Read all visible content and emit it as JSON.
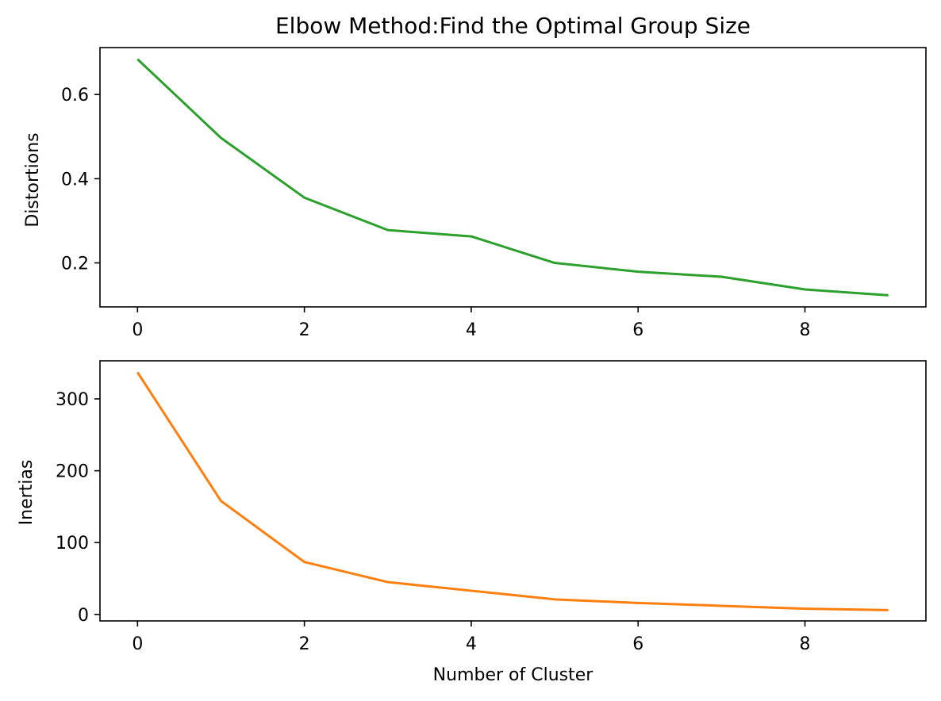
{
  "chart_data": [
    {
      "type": "line",
      "title": "Elbow Method:Find the Optimal Group Size",
      "xlabel": "",
      "ylabel": "Distortions",
      "xlim": [
        -0.45,
        9.45
      ],
      "ylim": [
        0.0955,
        0.7115
      ],
      "xticks": [
        0,
        2,
        4,
        6,
        8
      ],
      "yticks": [
        0.2,
        0.4,
        0.6
      ],
      "ytick_labels": [
        "0.2",
        "0.4",
        "0.6"
      ],
      "grid": false,
      "color": "#2ca02c",
      "series": [
        {
          "x": [
            0,
            1,
            2,
            3,
            4,
            5,
            6,
            7,
            8,
            9
          ],
          "values": [
            0.684,
            0.497,
            0.355,
            0.278,
            0.263,
            0.2,
            0.179,
            0.167,
            0.137,
            0.123
          ]
        }
      ]
    },
    {
      "type": "line",
      "title": "",
      "xlabel": "Number of Cluster",
      "ylabel": "Inertias",
      "xlim": [
        -0.45,
        9.45
      ],
      "ylim": [
        -9.0,
        353.0
      ],
      "xticks": [
        0,
        2,
        4,
        6,
        8
      ],
      "yticks": [
        0,
        100,
        200,
        300
      ],
      "ytick_labels": [
        "0",
        "100",
        "200",
        "300"
      ],
      "grid": false,
      "color": "#ff7f0e",
      "series": [
        {
          "x": [
            0,
            1,
            2,
            3,
            4,
            5,
            6,
            7,
            8,
            9
          ],
          "values": [
            337,
            158,
            73,
            45,
            33,
            21,
            16,
            12,
            8,
            6
          ]
        }
      ]
    }
  ]
}
